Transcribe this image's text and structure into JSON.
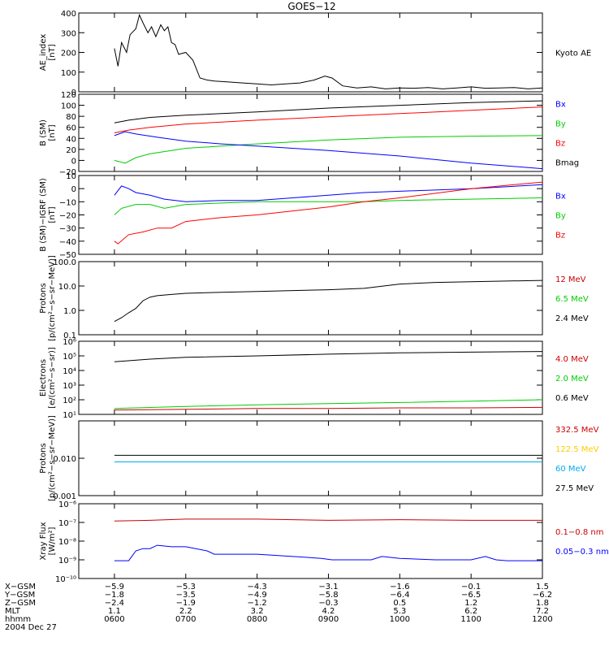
{
  "title": "GOES−12",
  "footer": {
    "rows": [
      {
        "label": "X−GSM",
        "values": [
          "−5.9",
          "−5.3",
          "−4.3",
          "−3.1",
          "−1.6",
          "−0.1",
          "1.5"
        ]
      },
      {
        "label": "Y−GSM",
        "values": [
          "−1.8",
          "−3.5",
          "−4.9",
          "−5.8",
          "−6.4",
          "−6.5",
          "−6.2"
        ]
      },
      {
        "label": "Z−GSM",
        "values": [
          "−2.4",
          "−1.9",
          "−1.2",
          "−0.3",
          "0.5",
          "1.2",
          "1.8"
        ]
      },
      {
        "label": "MLT",
        "values": [
          "1.1",
          "2.2",
          "3.2",
          "4.2",
          "5.3",
          "6.2",
          "7.2"
        ]
      },
      {
        "label": "hhmm",
        "values": [
          "0600",
          "0700",
          "0800",
          "0900",
          "1000",
          "1100",
          "1200"
        ]
      }
    ],
    "date": "2004 Dec 27"
  },
  "chart_data": [
    {
      "type": "line",
      "ylabel": [
        "AE_index",
        "[nT]"
      ],
      "ylim": [
        0,
        400
      ],
      "yticks": [
        {
          "v": 0,
          "t": "0"
        },
        {
          "v": 100,
          "t": "100"
        },
        {
          "v": 200,
          "t": "200"
        },
        {
          "v": 300,
          "t": "300"
        },
        {
          "v": 400,
          "t": "400"
        }
      ],
      "legend": [
        {
          "text": "Kyoto AE",
          "color": "#000000"
        }
      ],
      "series": [
        {
          "name": "Kyoto AE",
          "color": "#000000",
          "x": [
            6.0,
            6.05,
            6.1,
            6.17,
            6.22,
            6.3,
            6.35,
            6.4,
            6.47,
            6.52,
            6.58,
            6.65,
            6.7,
            6.75,
            6.8,
            6.85,
            6.9,
            7.0,
            7.1,
            7.2,
            7.3,
            7.4,
            7.6,
            7.8,
            8.0,
            8.2,
            8.4,
            8.6,
            8.8,
            8.95,
            9.05,
            9.2,
            9.4,
            9.6,
            9.8,
            10.0,
            10.2,
            10.4,
            10.6,
            10.8,
            11.0,
            11.2,
            11.4,
            11.6,
            11.8,
            12.0
          ],
          "y": [
            220,
            130,
            250,
            200,
            290,
            320,
            390,
            350,
            300,
            330,
            280,
            340,
            310,
            330,
            250,
            240,
            190,
            200,
            160,
            70,
            60,
            55,
            50,
            45,
            40,
            35,
            40,
            45,
            60,
            80,
            70,
            30,
            20,
            25,
            15,
            20,
            18,
            22,
            15,
            20,
            25,
            18,
            20,
            22,
            15,
            20
          ]
        }
      ]
    },
    {
      "type": "line",
      "ylabel": [
        "B (SM)",
        "[nT]"
      ],
      "ylim": [
        -20,
        120
      ],
      "yticks": [
        {
          "v": -20,
          "t": "−20"
        },
        {
          "v": 0,
          "t": "0"
        },
        {
          "v": 20,
          "t": "20"
        },
        {
          "v": 40,
          "t": "40"
        },
        {
          "v": 60,
          "t": "60"
        },
        {
          "v": 80,
          "t": "80"
        },
        {
          "v": 100,
          "t": "100"
        },
        {
          "v": 120,
          "t": "120"
        }
      ],
      "legend": [
        {
          "text": "Bx",
          "color": "#0000ff"
        },
        {
          "text": "By",
          "color": "#00cc00"
        },
        {
          "text": "Bz",
          "color": "#ff0000"
        },
        {
          "text": "Bmag",
          "color": "#000000"
        }
      ],
      "series": [
        {
          "name": "Bmag",
          "color": "#000000",
          "x": [
            6.0,
            6.2,
            6.5,
            7.0,
            8.0,
            9.0,
            10.0,
            11.0,
            12.0
          ],
          "y": [
            68,
            73,
            78,
            82,
            88,
            95,
            100,
            105,
            108
          ]
        },
        {
          "name": "Bz",
          "color": "#ff0000",
          "x": [
            6.0,
            6.2,
            6.5,
            7.0,
            8.0,
            9.0,
            10.0,
            11.0,
            12.0
          ],
          "y": [
            50,
            55,
            60,
            66,
            73,
            79,
            85,
            91,
            97
          ]
        },
        {
          "name": "By",
          "color": "#00cc00",
          "x": [
            6.0,
            6.15,
            6.3,
            6.5,
            6.8,
            7.0,
            7.5,
            8.0,
            9.0,
            10.0,
            11.0,
            12.0
          ],
          "y": [
            0,
            -5,
            5,
            12,
            18,
            22,
            26,
            30,
            37,
            42,
            44,
            45
          ]
        },
        {
          "name": "Bx",
          "color": "#0000ff",
          "x": [
            6.0,
            6.15,
            6.3,
            6.6,
            7.0,
            7.5,
            8.0,
            9.0,
            10.0,
            11.0,
            12.0
          ],
          "y": [
            45,
            52,
            48,
            42,
            35,
            30,
            26,
            18,
            8,
            -5,
            -15
          ]
        }
      ]
    },
    {
      "type": "line",
      "ylabel": [
        "B (SM)−IGRF (SM)",
        "[nT]"
      ],
      "ylim": [
        -50,
        10
      ],
      "yticks": [
        {
          "v": -50,
          "t": "−50"
        },
        {
          "v": -40,
          "t": "−40"
        },
        {
          "v": -30,
          "t": "−30"
        },
        {
          "v": -20,
          "t": "−20"
        },
        {
          "v": -10,
          "t": "−10"
        },
        {
          "v": 0,
          "t": "0"
        },
        {
          "v": 10,
          "t": "10"
        }
      ],
      "legend": [
        {
          "text": "Bx",
          "color": "#0000ff"
        },
        {
          "text": "By",
          "color": "#00cc00"
        },
        {
          "text": "Bz",
          "color": "#ff0000"
        }
      ],
      "series": [
        {
          "name": "Bx",
          "color": "#0000ff",
          "x": [
            6.0,
            6.1,
            6.2,
            6.3,
            6.5,
            6.7,
            7.0,
            7.5,
            8.0,
            8.5,
            9.0,
            9.5,
            10.0,
            11.0,
            12.0
          ],
          "y": [
            -5,
            2,
            0,
            -3,
            -5,
            -8,
            -10,
            -9,
            -9,
            -7,
            -5,
            -3,
            -2,
            0,
            3
          ]
        },
        {
          "name": "By",
          "color": "#00cc00",
          "x": [
            6.0,
            6.1,
            6.3,
            6.5,
            6.7,
            7.0,
            7.5,
            8.0,
            8.5,
            9.0,
            9.5,
            10.0,
            11.0,
            12.0
          ],
          "y": [
            -20,
            -15,
            -12,
            -12,
            -15,
            -12,
            -11,
            -10,
            -10,
            -10,
            -10,
            -9,
            -8,
            -7
          ]
        },
        {
          "name": "Bz",
          "color": "#ff0000",
          "x": [
            6.0,
            6.05,
            6.2,
            6.4,
            6.6,
            6.8,
            7.0,
            7.5,
            8.0,
            8.5,
            9.0,
            9.5,
            10.0,
            11.0,
            12.0
          ],
          "y": [
            -40,
            -42,
            -35,
            -33,
            -30,
            -30,
            -25,
            -22,
            -20,
            -17,
            -14,
            -10,
            -7,
            0,
            5
          ]
        }
      ]
    },
    {
      "type": "line",
      "ylabel": [
        "Protons",
        "[p/(cm²−s−sr−MeV)]"
      ],
      "log": true,
      "ylim": [
        0.1,
        100
      ],
      "yticks": [
        {
          "v": 0.1,
          "t": "0.1"
        },
        {
          "v": 1,
          "t": "1.0"
        },
        {
          "v": 10,
          "t": "10.0"
        },
        {
          "v": 100,
          "t": "100.0"
        }
      ],
      "legend": [
        {
          "text": "12 MeV",
          "color": "#cc0000"
        },
        {
          "text": "6.5 MeV",
          "color": "#00cc00"
        },
        {
          "text": "2.4 MeV",
          "color": "#000000"
        }
      ],
      "series": [
        {
          "name": "2.4 MeV",
          "color": "#000000",
          "x": [
            6.0,
            6.1,
            6.2,
            6.3,
            6.4,
            6.5,
            6.6,
            6.8,
            7.0,
            7.5,
            8.0,
            8.5,
            9.0,
            9.5,
            10.0,
            10.5,
            11.0,
            11.5,
            12.0
          ],
          "y": [
            0.35,
            0.5,
            0.8,
            1.2,
            2.5,
            3.5,
            4.0,
            4.5,
            5.0,
            5.5,
            6.0,
            6.5,
            7.0,
            8.0,
            12.0,
            14.0,
            15.0,
            16.0,
            17.0
          ]
        }
      ]
    },
    {
      "type": "line",
      "ylabel": [
        "Electrons",
        "[e/(cm²−s−sr)]"
      ],
      "log": true,
      "ylim": [
        10,
        1000000
      ],
      "yticks": [
        {
          "v": 10,
          "t": "10¹"
        },
        {
          "v": 100,
          "t": "10²"
        },
        {
          "v": 1000,
          "t": "10³"
        },
        {
          "v": 10000,
          "t": "10⁴"
        },
        {
          "v": 100000,
          "t": "10⁵"
        },
        {
          "v": 1000000,
          "t": "10⁶"
        }
      ],
      "legend": [
        {
          "text": "4.0 MeV",
          "color": "#cc0000"
        },
        {
          "text": "2.0 MeV",
          "color": "#00cc00"
        },
        {
          "text": "0.6 MeV",
          "color": "#000000"
        }
      ],
      "series": [
        {
          "name": "0.6 MeV",
          "color": "#000000",
          "x": [
            6.0,
            6.5,
            7.0,
            8.0,
            9.0,
            10.0,
            11.0,
            12.0
          ],
          "y": [
            40000,
            60000,
            80000,
            100000,
            130000,
            160000,
            180000,
            200000
          ]
        },
        {
          "name": "2.0 MeV",
          "color": "#00cc00",
          "x": [
            6.0,
            7.0,
            8.0,
            9.0,
            10.0,
            11.0,
            12.0
          ],
          "y": [
            25,
            35,
            45,
            55,
            65,
            80,
            100
          ]
        },
        {
          "name": "4.0 MeV",
          "color": "#cc0000",
          "x": [
            6.0,
            7.0,
            8.0,
            9.0,
            10.0,
            11.0,
            12.0
          ],
          "y": [
            20,
            22,
            25,
            25,
            28,
            28,
            30
          ]
        }
      ]
    },
    {
      "type": "line",
      "ylabel": [
        "Protons",
        "[p/(cm²−s−sr−MeV)]"
      ],
      "log": true,
      "ylim": [
        0.001,
        0.1
      ],
      "yticks": [
        {
          "v": 0.001,
          "t": "0.001"
        },
        {
          "v": 0.01,
          "t": "0.010"
        }
      ],
      "legend": [
        {
          "text": "332.5 MeV",
          "color": "#cc0000"
        },
        {
          "text": "122.5 MeV",
          "color": "#ffcc00"
        },
        {
          "text": "60 MeV",
          "color": "#00aaee"
        },
        {
          "text": "27.5 MeV",
          "color": "#000000"
        }
      ],
      "series": [
        {
          "name": "27.5 MeV",
          "color": "#000000",
          "x": [
            6.0,
            12.0
          ],
          "y": [
            0.012,
            0.012
          ]
        },
        {
          "name": "60 MeV",
          "color": "#00aaee",
          "x": [
            6.0,
            12.0
          ],
          "y": [
            0.008,
            0.008
          ]
        }
      ]
    },
    {
      "type": "line",
      "ylabel": [
        "Xray Flux",
        "[W/m²]"
      ],
      "log": true,
      "ylim": [
        1e-10,
        1e-06
      ],
      "yticks": [
        {
          "v": 1e-10,
          "t": "10⁻¹⁰"
        },
        {
          "v": 1e-09,
          "t": "10⁻⁹"
        },
        {
          "v": 1e-08,
          "t": "10⁻⁸"
        },
        {
          "v": 1e-07,
          "t": "10⁻⁷"
        },
        {
          "v": 1e-06,
          "t": "10⁻⁶"
        }
      ],
      "legend": [
        {
          "text": "0.1−0.8 nm",
          "color": "#cc0000"
        },
        {
          "text": "0.05−0.3 nm",
          "color": "#0000ff"
        }
      ],
      "series": [
        {
          "name": "0.1−0.8 nm",
          "color": "#cc0000",
          "x": [
            6.0,
            6.5,
            7.0,
            8.0,
            9.0,
            10.0,
            11.0,
            12.0
          ],
          "y": [
            1.2e-07,
            1.3e-07,
            1.5e-07,
            1.5e-07,
            1.3e-07,
            1.4e-07,
            1.3e-07,
            1.3e-07
          ]
        },
        {
          "name": "0.05−0.3 nm",
          "color": "#0000ff",
          "x": [
            6.0,
            6.2,
            6.3,
            6.4,
            6.5,
            6.6,
            6.8,
            7.0,
            7.3,
            7.4,
            8.0,
            8.5,
            8.9,
            9.05,
            9.2,
            9.6,
            9.75,
            10.0,
            10.5,
            11.0,
            11.2,
            11.35,
            11.5,
            12.0
          ],
          "y": [
            9e-10,
            9e-10,
            3e-09,
            4e-09,
            4e-09,
            6e-09,
            5e-09,
            5e-09,
            3e-09,
            2e-09,
            2e-09,
            1.5e-09,
            1.2e-09,
            1e-09,
            1e-09,
            1e-09,
            1.5e-09,
            1.2e-09,
            1e-09,
            1e-09,
            1.5e-09,
            1e-09,
            9e-10,
            9e-10
          ]
        }
      ]
    }
  ]
}
